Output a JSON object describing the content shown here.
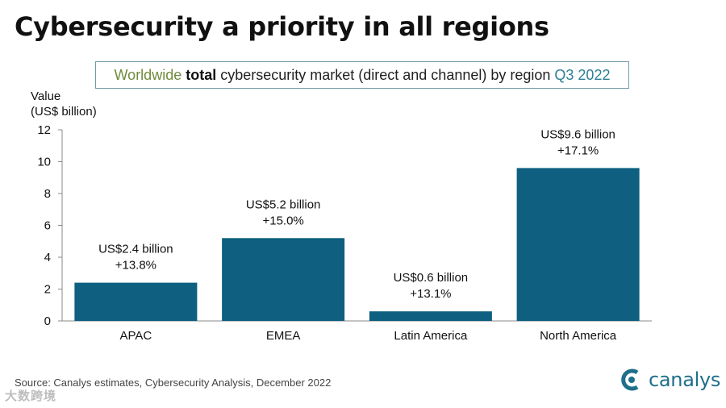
{
  "title": "Cybersecurity a priority in all regions",
  "subtitle": {
    "part1": "Worldwide",
    "part2": "total",
    "part3": "cybersecurity market (direct and channel) by region",
    "part4": "Q3 2022"
  },
  "chart_data": {
    "type": "bar",
    "title": "Cybersecurity a priority in all regions",
    "ylabel_line1": "Value",
    "ylabel_line2": "(US$ billion)",
    "xlabel": "",
    "ylim": [
      0,
      12
    ],
    "yticks": [
      0,
      2,
      4,
      6,
      8,
      10,
      12
    ],
    "grid": false,
    "categories": [
      "APAC",
      "EMEA",
      "Latin America",
      "North America"
    ],
    "values": [
      2.4,
      5.2,
      0.6,
      9.6
    ],
    "value_labels": [
      "US$2.4 billion",
      "US$5.2 billion",
      "US$0.6 billion",
      "US$9.6 billion"
    ],
    "growth_labels": [
      "+13.8%",
      "+15.0%",
      "+13.1%",
      "+17.1%"
    ],
    "bar_color": "#0e5f80"
  },
  "source": "Source: Canalys estimates, Cybersecurity Analysis, December 2022",
  "logo_text": "canalys",
  "watermark": "大数跨境",
  "colors": {
    "accent": "#1f6f8b",
    "subtitle_green": "#6e8b3d",
    "subtitle_teal": "#2f7f96",
    "box_border": "#6f9aa6"
  }
}
